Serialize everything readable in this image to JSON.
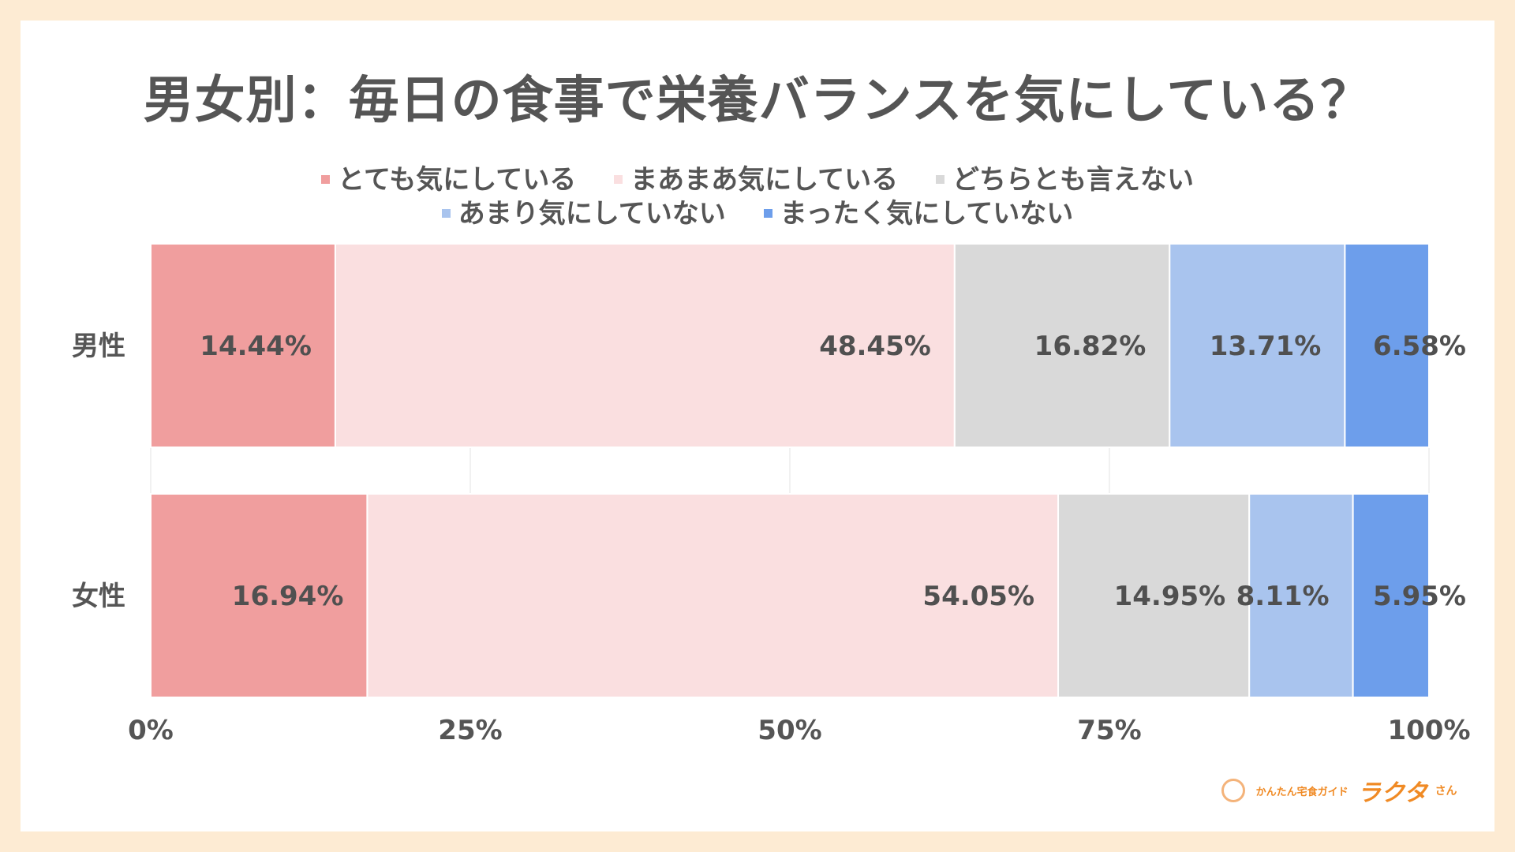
{
  "chart_data": {
    "type": "bar",
    "orientation": "horizontal",
    "stacked": true,
    "normalized": true,
    "title": "男女別：毎日の食事で栄養バランスを気にしている？",
    "categories": [
      "男性",
      "女性"
    ],
    "series": [
      {
        "name": "とても気にしている",
        "color": "#f09e9e",
        "values": [
          14.44,
          16.94
        ],
        "labels": [
          "14.44%",
          "16.94%"
        ]
      },
      {
        "name": "まあまあ気にしている",
        "color": "#fadfe0",
        "values": [
          48.45,
          54.05
        ],
        "labels": [
          "48.45%",
          "54.05%"
        ]
      },
      {
        "name": "どちらとも言えない",
        "color": "#d9d9d9",
        "values": [
          16.82,
          14.95
        ],
        "labels": [
          "16.82%",
          "14.95%"
        ]
      },
      {
        "name": "あまり気にしていない",
        "color": "#a9c4ee",
        "values": [
          13.71,
          8.11
        ],
        "labels": [
          "13.71%",
          "8.11%"
        ]
      },
      {
        "name": "まったく気にしていない",
        "color": "#6d9eeb",
        "values": [
          6.58,
          5.95
        ],
        "labels": [
          "6.58%",
          "5.95%"
        ]
      }
    ],
    "xlim": [
      0,
      100
    ],
    "x_ticks": [
      "0%",
      "25%",
      "50%",
      "75%",
      "100%"
    ],
    "grid": true,
    "legend_position": "top"
  },
  "logo": {
    "tagline": "かんたん宅食ガイド",
    "brand": "ラクタ",
    "suffix": "さん"
  }
}
